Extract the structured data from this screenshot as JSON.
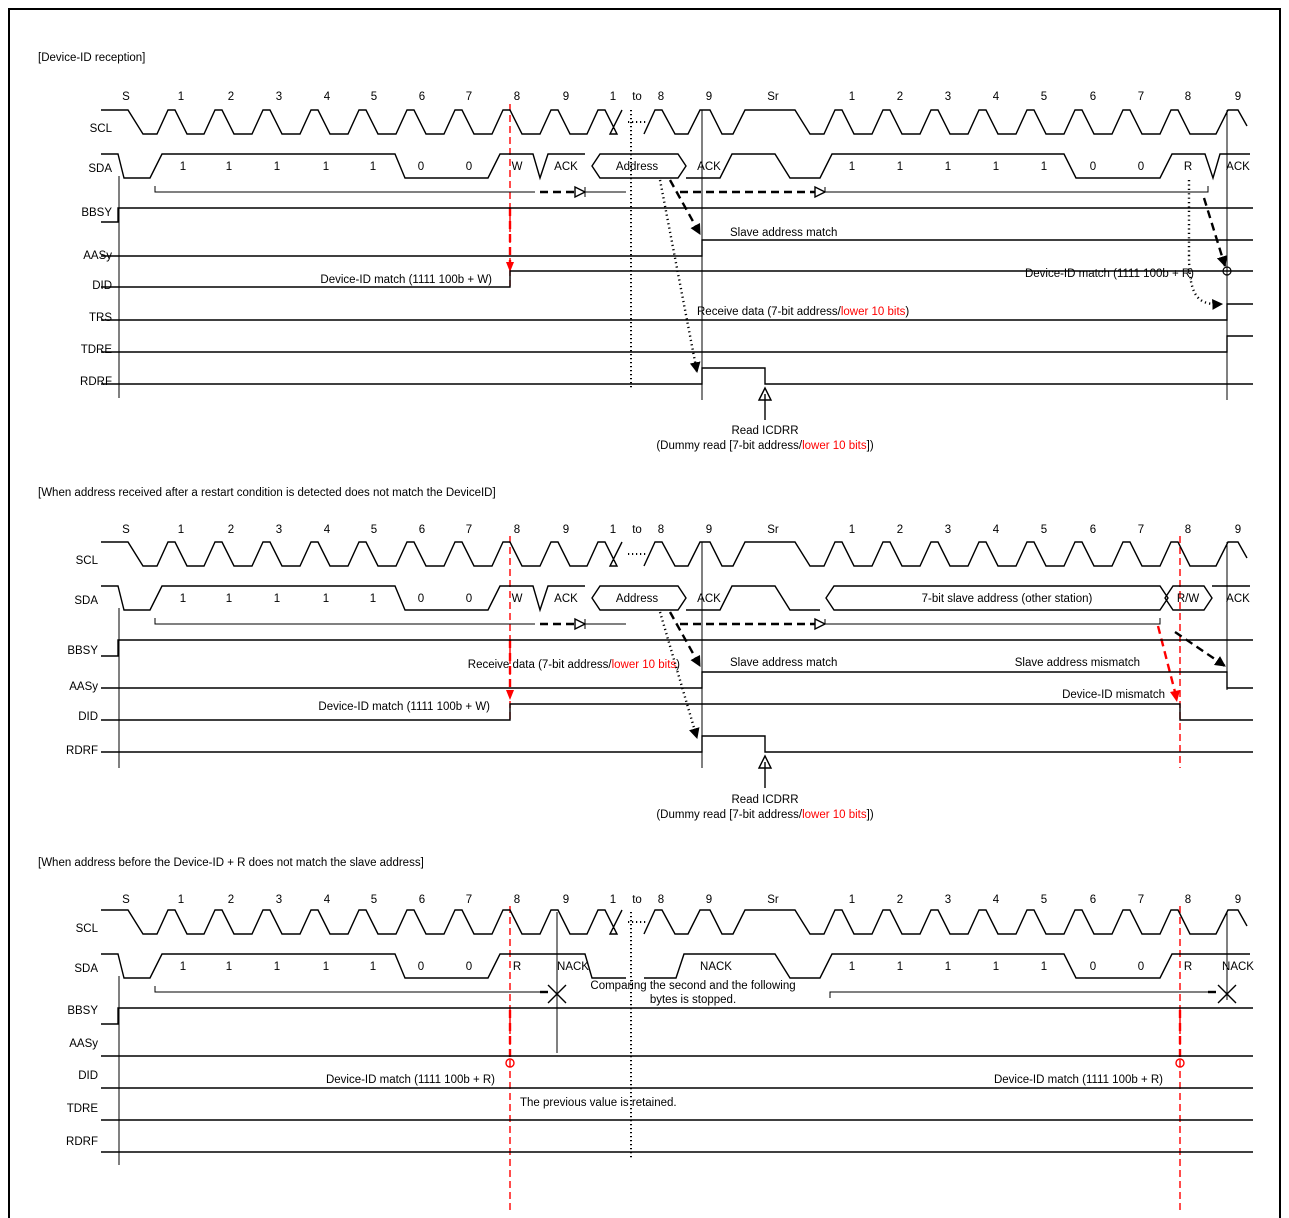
{
  "panels": [
    {
      "title": "[Device-ID reception]",
      "clock_labels": [
        "S",
        "1",
        "2",
        "3",
        "4",
        "5",
        "6",
        "7",
        "8",
        "9",
        "1",
        "to",
        "8",
        "9",
        "Sr",
        "1",
        "2",
        "3",
        "4",
        "5",
        "6",
        "7",
        "8",
        "9"
      ],
      "signals": [
        "SCL",
        "SDA",
        "BBSY",
        "AASy",
        "DID",
        "TRS",
        "TDRE",
        "RDRF"
      ],
      "sda_bits": [
        "1",
        "1",
        "1",
        "1",
        "1",
        "0",
        "0",
        "W",
        "ACK",
        "Address",
        "ACK",
        "1",
        "1",
        "1",
        "1",
        "1",
        "0",
        "0",
        "R",
        "ACK"
      ],
      "annotations": {
        "slave_match": "Slave address match",
        "did_match_w": "Device-ID match (1111 100b + W)",
        "did_match_r": "Device-ID match (1111 100b + R)",
        "receive_data_prefix": "Receive data (7-bit address/",
        "receive_data_red": "lower 10 bits",
        "receive_data_suffix": ")",
        "read_label": "Read ICDRR",
        "dummy_prefix": "(Dummy read [7-bit address/",
        "dummy_red": "lower 10 bits",
        "dummy_suffix": "])"
      }
    },
    {
      "title": "[When address received after a restart condition is detected does not match the DeviceID]",
      "clock_labels": [
        "S",
        "1",
        "2",
        "3",
        "4",
        "5",
        "6",
        "7",
        "8",
        "9",
        "1",
        "to",
        "8",
        "9",
        "Sr",
        "1",
        "2",
        "3",
        "4",
        "5",
        "6",
        "7",
        "8",
        "9"
      ],
      "signals": [
        "SCL",
        "SDA",
        "BBSY",
        "AASy",
        "DID",
        "RDRF"
      ],
      "sda_bits": [
        "1",
        "1",
        "1",
        "1",
        "1",
        "0",
        "0",
        "W",
        "ACK",
        "Address",
        "ACK",
        "7-bit slave address (other station)",
        "R/W",
        "ACK"
      ],
      "annotations": {
        "receive_data_prefix": "Receive data (7-bit address/",
        "receive_data_red": "lower 10 bits",
        "receive_data_suffix": ")",
        "slave_match": "Slave address match",
        "slave_mismatch": "Slave address mismatch",
        "did_mismatch": "Device-ID mismatch",
        "did_match_w": "Device-ID match (1111 100b + W)",
        "read_label": "Read ICDRR",
        "dummy_prefix": "(Dummy read [7-bit address/",
        "dummy_red": "lower 10 bits",
        "dummy_suffix": "])"
      }
    },
    {
      "title": "[When address before the Device-ID + R does not match the slave address]",
      "clock_labels": [
        "S",
        "1",
        "2",
        "3",
        "4",
        "5",
        "6",
        "7",
        "8",
        "9",
        "1",
        "to",
        "8",
        "9",
        "Sr",
        "1",
        "2",
        "3",
        "4",
        "5",
        "6",
        "7",
        "8",
        "9"
      ],
      "signals": [
        "SCL",
        "SDA",
        "BBSY",
        "AASy",
        "DID",
        "TDRE",
        "RDRF"
      ],
      "sda_bits": [
        "1",
        "1",
        "1",
        "1",
        "1",
        "0",
        "0",
        "R",
        "NACK",
        "NACK",
        "1",
        "1",
        "1",
        "1",
        "1",
        "0",
        "0",
        "R",
        "NACK"
      ],
      "annotations": {
        "compare_line1": "Comparing the second and the following",
        "compare_line2": "bytes is stopped.",
        "did_match_r_left": "Device-ID match (1111 100b + R)",
        "did_match_r_right": "Device-ID match (1111 100b + R)",
        "retained": "The previous value is retained."
      }
    }
  ]
}
